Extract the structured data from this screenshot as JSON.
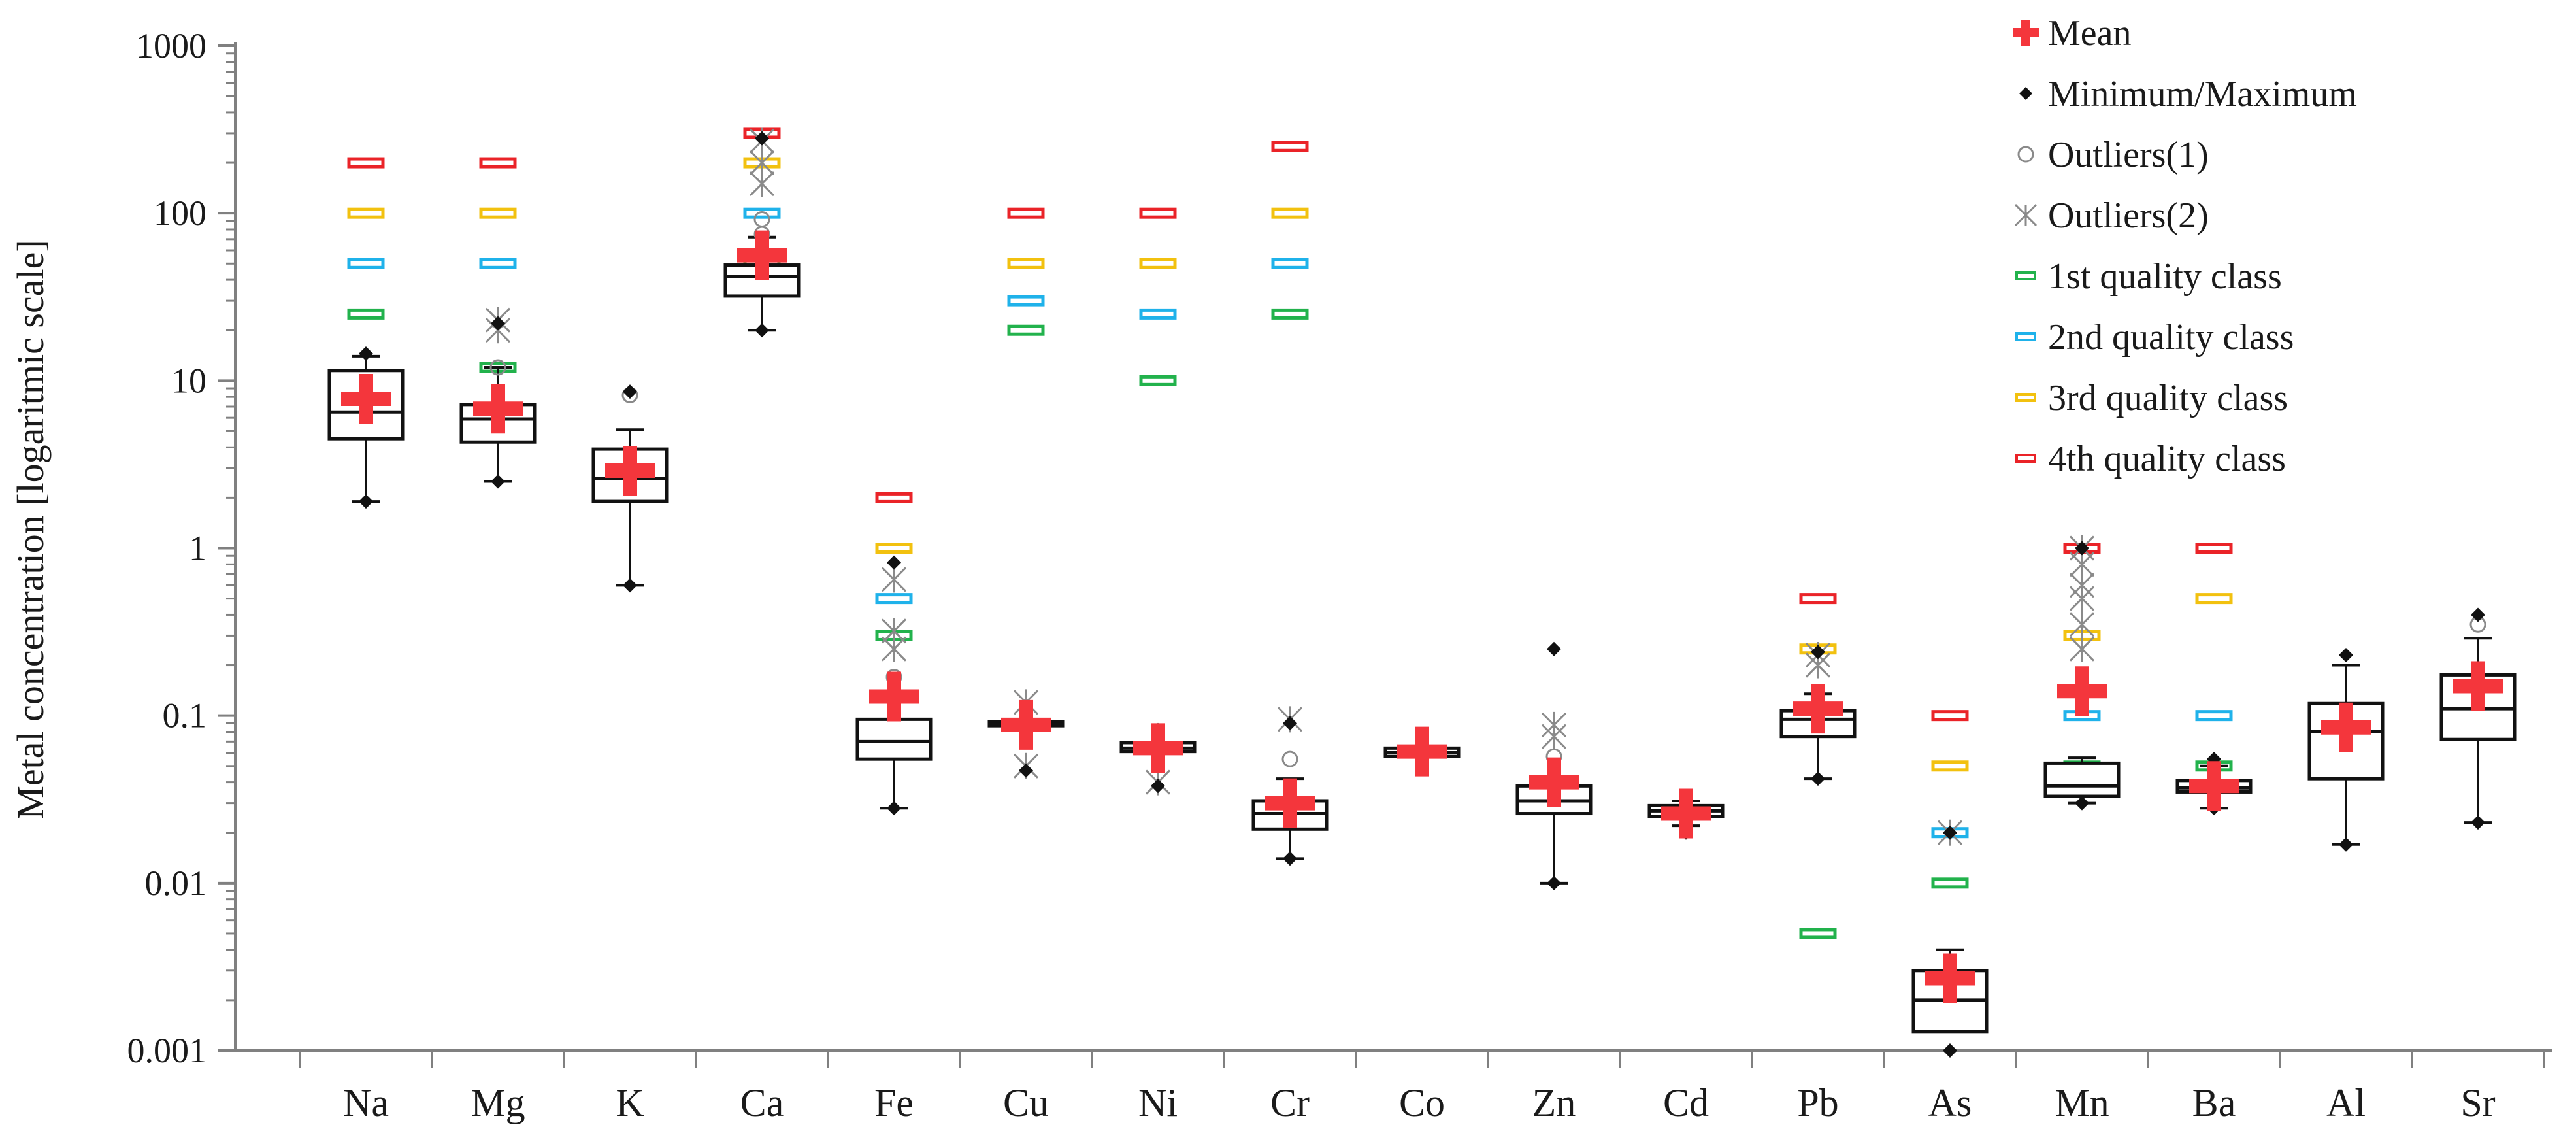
{
  "chart_data": {
    "type": "box",
    "ylabel": "Metal concentration [logaritmic scale]",
    "y_scale": "log",
    "ylim": [
      0.001,
      1000
    ],
    "y_ticks": [
      {
        "value": 1000,
        "label": "1000"
      },
      {
        "value": 100,
        "label": "100"
      },
      {
        "value": 10,
        "label": "10"
      },
      {
        "value": 1,
        "label": "1"
      },
      {
        "value": 0.1,
        "label": "0.1"
      },
      {
        "value": 0.01,
        "label": "0.01"
      },
      {
        "value": 0.001,
        "label": "0.001"
      }
    ],
    "legend_position": "top-right",
    "legend": [
      {
        "key": "mean",
        "label": "Mean"
      },
      {
        "key": "minmax",
        "label": "Minimum/Maximum"
      },
      {
        "key": "out1",
        "label": "Outliers(1)"
      },
      {
        "key": "out2",
        "label": "Outliers(2)"
      },
      {
        "key": "q1",
        "label": "1st quality class"
      },
      {
        "key": "q2",
        "label": "2nd quality class"
      },
      {
        "key": "q3",
        "label": "3rd quality class"
      },
      {
        "key": "q4",
        "label": "4th quality class"
      }
    ],
    "colors": {
      "mean": "#f4363c",
      "minmax": "#111111",
      "out1": "#8a8a8a",
      "out2": "#8a8a8a",
      "q1": "#22b24c",
      "q2": "#1fb2ea",
      "q3": "#f2c10f",
      "q4": "#ea2328",
      "box": "#111111",
      "axis": "#808080"
    },
    "categories": [
      {
        "name": "Na",
        "q1": 4.5,
        "median": 6.5,
        "q3": 11.5,
        "whisker_low": 1.9,
        "whisker_high": 14,
        "min": 1.9,
        "max": 14.5,
        "mean": 7.8,
        "outliers1": [],
        "outliers2": [],
        "class1": 25,
        "class2": 50,
        "class3": 100,
        "class4": 200
      },
      {
        "name": "Mg",
        "q1": 4.3,
        "median": 5.9,
        "q3": 7.2,
        "whisker_low": 2.5,
        "whisker_high": 12,
        "min": 2.5,
        "max": 22,
        "mean": 6.8,
        "outliers1": [
          12
        ],
        "outliers2": [
          20,
          23
        ],
        "class1": 12,
        "class2": 50,
        "class3": 100,
        "class4": 200
      },
      {
        "name": "K",
        "q1": 1.9,
        "median": 2.6,
        "q3": 3.9,
        "whisker_low": 0.6,
        "whisker_high": 5.1,
        "min": 0.6,
        "max": 8.6,
        "mean": 2.9,
        "outliers1": [
          8.2
        ],
        "outliers2": [],
        "class1": null,
        "class2": null,
        "class3": null,
        "class4": null
      },
      {
        "name": "Ca",
        "q1": 32,
        "median": 42,
        "q3": 49,
        "whisker_low": 20,
        "whisker_high": 72,
        "min": 20,
        "max": 280,
        "mean": 56,
        "outliers1": [
          75,
          92
        ],
        "outliers2": [
          150,
          200,
          270
        ],
        "class1": 50,
        "class2": 100,
        "class3": 200,
        "class4": 300
      },
      {
        "name": "Fe",
        "q1": 0.055,
        "median": 0.07,
        "q3": 0.095,
        "whisker_low": 0.028,
        "whisker_high": 0.14,
        "min": 0.028,
        "max": 0.82,
        "mean": 0.13,
        "outliers1": [
          0.17
        ],
        "outliers2": [
          0.25,
          0.32,
          0.65
        ],
        "class1": 0.3,
        "class2": 0.5,
        "class3": 1,
        "class4": 2
      },
      {
        "name": "Cu",
        "q1": 0.087,
        "median": 0.089,
        "q3": 0.092,
        "whisker_low": 0.087,
        "whisker_high": 0.092,
        "min": 0.047,
        "max": 0.11,
        "mean": 0.088,
        "outliers1": [],
        "outliers2": [
          0.05,
          0.12
        ],
        "class1": 20,
        "class2": 30,
        "class3": 50,
        "class4": 100
      },
      {
        "name": "Ni",
        "q1": 0.061,
        "median": 0.064,
        "q3": 0.069,
        "whisker_low": 0.061,
        "whisker_high": 0.069,
        "min": 0.038,
        "max": 0.082,
        "mean": 0.064,
        "outliers1": [],
        "outliers2": [
          0.04
        ],
        "class1": 10,
        "class2": 25,
        "class3": 50,
        "class4": 100
      },
      {
        "name": "Cr",
        "q1": 0.021,
        "median": 0.026,
        "q3": 0.031,
        "whisker_low": 0.014,
        "whisker_high": 0.042,
        "min": 0.014,
        "max": 0.09,
        "mean": 0.03,
        "outliers1": [
          0.055
        ],
        "outliers2": [
          0.095
        ],
        "class1": 25,
        "class2": 50,
        "class3": 100,
        "class4": 250
      },
      {
        "name": "Co",
        "q1": 0.057,
        "median": 0.06,
        "q3": 0.064,
        "whisker_low": 0.057,
        "whisker_high": 0.064,
        "min": 0.05,
        "max": 0.07,
        "mean": 0.061,
        "outliers1": [],
        "outliers2": [],
        "class1": null,
        "class2": null,
        "class3": null,
        "class4": null
      },
      {
        "name": "Zn",
        "q1": 0.026,
        "median": 0.031,
        "q3": 0.038,
        "whisker_low": 0.01,
        "whisker_high": 0.042,
        "min": 0.01,
        "max": 0.25,
        "mean": 0.04,
        "outliers1": [
          0.057
        ],
        "outliers2": [
          0.075,
          0.088
        ],
        "class1": null,
        "class2": null,
        "class3": null,
        "class4": null
      },
      {
        "name": "Cd",
        "q1": 0.025,
        "median": 0.027,
        "q3": 0.029,
        "whisker_low": 0.022,
        "whisker_high": 0.031,
        "min": 0.02,
        "max": 0.032,
        "mean": 0.026,
        "outliers1": [],
        "outliers2": [],
        "class1": null,
        "class2": null,
        "class3": null,
        "class4": null
      },
      {
        "name": "Pb",
        "q1": 0.075,
        "median": 0.095,
        "q3": 0.107,
        "whisker_low": 0.042,
        "whisker_high": 0.135,
        "min": 0.042,
        "max": 0.24,
        "mean": 0.11,
        "outliers1": [],
        "outliers2": [
          0.2,
          0.23
        ],
        "class1": 0.005,
        "class2": 0.1,
        "class3": 0.25,
        "class4": 0.5
      },
      {
        "name": "As",
        "q1": 0.0013,
        "median": 0.002,
        "q3": 0.003,
        "whisker_low": 0.0013,
        "whisker_high": 0.004,
        "min": 0.001,
        "max": 0.02,
        "mean": 0.0027,
        "outliers1": [],
        "outliers2": [
          0.02
        ],
        "class1": 0.01,
        "class2": 0.02,
        "class3": 0.05,
        "class4": 0.1
      },
      {
        "name": "Mn",
        "q1": 0.033,
        "median": 0.038,
        "q3": 0.052,
        "whisker_low": 0.03,
        "whisker_high": 0.056,
        "min": 0.03,
        "max": 1.0,
        "mean": 0.14,
        "outliers1": [],
        "outliers2": [
          0.25,
          0.35,
          0.5,
          0.6,
          0.8,
          1.0
        ],
        "class1": 0.05,
        "class2": 0.1,
        "class3": 0.3,
        "class4": 1
      },
      {
        "name": "Ba",
        "q1": 0.035,
        "median": 0.037,
        "q3": 0.041,
        "whisker_low": 0.028,
        "whisker_high": 0.05,
        "min": 0.028,
        "max": 0.055,
        "mean": 0.038,
        "outliers1": [],
        "outliers2": [],
        "class1": 0.05,
        "class2": 0.1,
        "class3": 0.5,
        "class4": 1
      },
      {
        "name": "Al",
        "q1": 0.042,
        "median": 0.08,
        "q3": 0.118,
        "whisker_low": 0.017,
        "whisker_high": 0.2,
        "min": 0.017,
        "max": 0.23,
        "mean": 0.085,
        "outliers1": [],
        "outliers2": [],
        "class1": null,
        "class2": null,
        "class3": null,
        "class4": null
      },
      {
        "name": "Sr",
        "q1": 0.072,
        "median": 0.11,
        "q3": 0.175,
        "whisker_low": 0.023,
        "whisker_high": 0.29,
        "min": 0.023,
        "max": 0.4,
        "mean": 0.15,
        "outliers1": [
          0.35
        ],
        "outliers2": [],
        "class1": null,
        "class2": null,
        "class3": null,
        "class4": null
      }
    ]
  }
}
